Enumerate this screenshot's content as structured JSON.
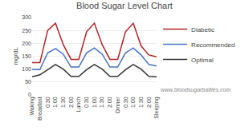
{
  "chart_data": {
    "type": "line",
    "title": "Blood Sugar Level Chart",
    "ylabel": "mg/dL",
    "categories": [
      "Waking",
      "Breakfast",
      "0:30",
      "1:00",
      "1:30",
      "2:00",
      "Lunch",
      "0:30",
      "1:00",
      "1:30",
      "2:00",
      "Dinner",
      "0:30",
      "1:00",
      "1:30",
      "2:00",
      "Sleeping"
    ],
    "series": [
      {
        "name": "Diabetic",
        "color": "#b22222",
        "values": [
          125,
          125,
          250,
          278,
          195,
          138,
          138,
          245,
          278,
          195,
          138,
          138,
          245,
          278,
          190,
          155,
          148
        ]
      },
      {
        "name": "Recommended",
        "color": "#4472c4",
        "values": [
          98,
          98,
          163,
          180,
          158,
          108,
          108,
          163,
          182,
          158,
          108,
          108,
          163,
          182,
          155,
          118,
          112
        ]
      },
      {
        "name": "Optimal",
        "color": "#333333",
        "values": [
          70,
          78,
          98,
          118,
          100,
          72,
          72,
          98,
          118,
          100,
          72,
          72,
          98,
          118,
          100,
          72,
          70
        ]
      }
    ],
    "ylim": [
      0,
      300
    ],
    "yticks": [
      0,
      50,
      100,
      150,
      200,
      250,
      300
    ],
    "grid": true,
    "legend": "right",
    "annotations": [
      {
        "text": "www.bloodsugarbattles.com"
      }
    ]
  }
}
